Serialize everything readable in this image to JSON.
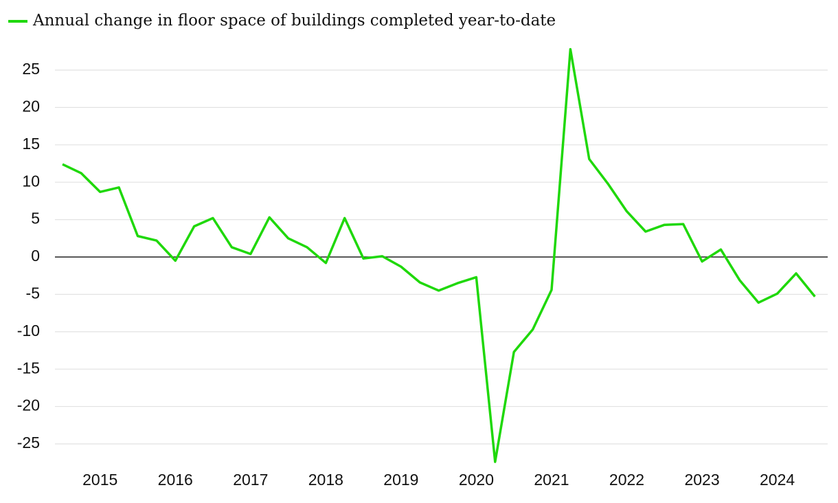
{
  "chart_data": {
    "type": "line",
    "x": [
      2014.5,
      2014.75,
      2015,
      2015.25,
      2015.5,
      2015.75,
      2016,
      2016.25,
      2016.5,
      2016.75,
      2017,
      2017.25,
      2017.5,
      2017.75,
      2018,
      2018.25,
      2018.5,
      2018.75,
      2019,
      2019.25,
      2019.5,
      2019.75,
      2020,
      2020.25,
      2020.5,
      2020.75,
      2021,
      2021.25,
      2021.5,
      2021.75,
      2022,
      2022.25,
      2022.5,
      2022.75,
      2023,
      2023.25,
      2023.5,
      2023.75,
      2024,
      2024.25,
      2024.5
    ],
    "series": [
      {
        "name": "Annual change in floor space of buildings completed year-to-date",
        "color": "#1fd80a",
        "values": [
          12.4,
          11.2,
          8.7,
          9.3,
          2.8,
          2.2,
          -0.5,
          4.1,
          5.2,
          1.3,
          0.4,
          5.3,
          2.5,
          1.3,
          -0.8,
          5.2,
          -0.2,
          0.1,
          -1.3,
          -3.4,
          -4.5,
          -3.5,
          -2.7,
          -27.4,
          -12.7,
          -9.7,
          -4.4,
          27.8,
          13.1,
          9.8,
          6.1,
          3.4,
          4.3,
          4.4,
          -0.6,
          1.0,
          -3.1,
          -6.1,
          -4.9,
          -2.2,
          -5.3
        ]
      }
    ],
    "xlim": [
      2014.4,
      2024.67
    ],
    "xticks": [
      2015,
      2016,
      2017,
      2018,
      2019,
      2020,
      2021,
      2022,
      2023,
      2024
    ],
    "ylim": [
      -28,
      29
    ],
    "yticks": [
      -25,
      -20,
      -15,
      -10,
      -5,
      0,
      5,
      10,
      15,
      20,
      25
    ],
    "grid": true,
    "legend": "top-left"
  }
}
